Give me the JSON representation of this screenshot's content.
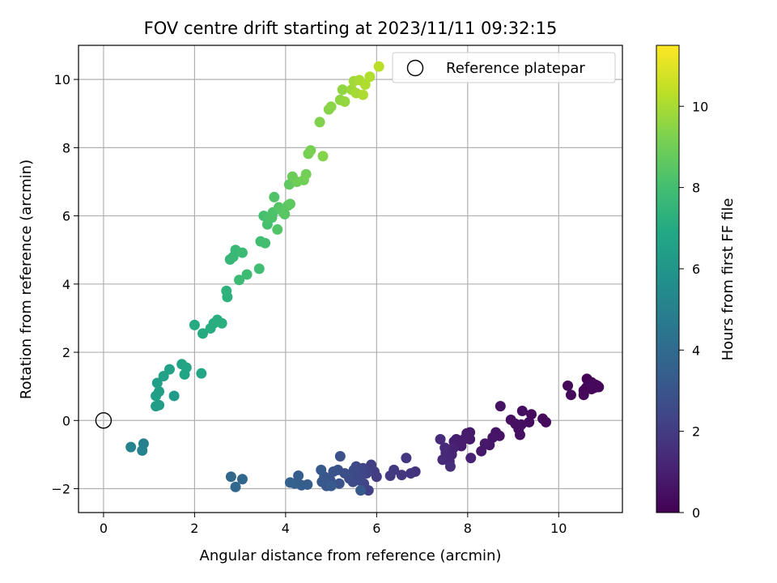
{
  "chart_data": {
    "type": "scatter",
    "title": "FOV centre drift starting at 2023/11/11 09:32:15",
    "xlabel": "Angular distance from reference (arcmin)",
    "ylabel": "Rotation from reference (arcmin)",
    "xlim": [
      -0.55,
      11.4
    ],
    "ylim": [
      -2.7,
      11.0
    ],
    "xticks": [
      0,
      2,
      4,
      6,
      8,
      10
    ],
    "yticks": [
      -2,
      0,
      2,
      4,
      6,
      8,
      10
    ],
    "xtick_labels": [
      "0",
      "2",
      "4",
      "6",
      "8",
      "10"
    ],
    "ytick_labels": [
      "−2",
      "0",
      "2",
      "4",
      "6",
      "8",
      "10"
    ],
    "grid": true,
    "legend": {
      "placement": "top-right",
      "entries": [
        {
          "label": "Reference platepar",
          "marker": "open-circle"
        }
      ]
    },
    "reference_point": {
      "x": 0,
      "y": 0
    },
    "colorbar": {
      "label": "Hours from first FF file",
      "colormap": "viridis",
      "range": [
        0,
        11.5
      ],
      "ticks": [
        0,
        2,
        4,
        6,
        8,
        10
      ],
      "tick_labels": [
        "0",
        "2",
        "4",
        "6",
        "8",
        "10"
      ]
    },
    "points": [
      [
        10.62,
        1.22,
        0.05
      ],
      [
        10.72,
        1.12,
        0.05
      ],
      [
        10.85,
        1.02,
        0.1
      ],
      [
        10.78,
        0.96,
        0.1
      ],
      [
        10.65,
        1.05,
        0.12
      ],
      [
        10.55,
        0.88,
        0.12
      ],
      [
        10.6,
        0.95,
        0.15
      ],
      [
        10.72,
        0.92,
        0.15
      ],
      [
        10.8,
        1.05,
        0.18
      ],
      [
        10.55,
        0.75,
        0.2
      ],
      [
        10.88,
        0.98,
        0.22
      ],
      [
        10.7,
        1.1,
        0.22
      ],
      [
        10.2,
        1.02,
        0.25
      ],
      [
        10.27,
        0.75,
        0.28
      ],
      [
        9.72,
        -0.05,
        0.3
      ],
      [
        9.65,
        0.05,
        0.32
      ],
      [
        9.4,
        0.18,
        0.35
      ],
      [
        9.35,
        -0.05,
        0.38
      ],
      [
        9.2,
        0.28,
        0.4
      ],
      [
        9.18,
        -0.12,
        0.42
      ],
      [
        9.12,
        -0.25,
        0.45
      ],
      [
        9.15,
        -0.42,
        0.48
      ],
      [
        9.05,
        -0.1,
        0.5
      ],
      [
        8.95,
        0.02,
        0.52
      ],
      [
        8.72,
        0.42,
        0.55
      ],
      [
        8.7,
        -0.45,
        0.6
      ],
      [
        8.62,
        -0.35,
        0.62
      ],
      [
        8.55,
        -0.5,
        0.65
      ],
      [
        8.48,
        -0.72,
        0.7
      ],
      [
        8.38,
        -0.68,
        0.72
      ],
      [
        8.3,
        -0.9,
        0.75
      ],
      [
        8.05,
        -0.55,
        0.8
      ],
      [
        8.05,
        -0.35,
        0.82
      ],
      [
        7.98,
        -0.38,
        0.85
      ],
      [
        7.92,
        -0.55,
        0.88
      ],
      [
        7.86,
        -0.75,
        0.9
      ],
      [
        7.82,
        -0.65,
        0.92
      ],
      [
        7.75,
        -0.55,
        0.95
      ],
      [
        7.7,
        -0.62,
        1.0
      ],
      [
        7.68,
        -0.82,
        1.05
      ],
      [
        8.07,
        -1.1,
        1.1
      ],
      [
        7.65,
        -1.0,
        1.15
      ],
      [
        7.6,
        -1.2,
        1.2
      ],
      [
        7.58,
        -1.05,
        1.25
      ],
      [
        7.52,
        -0.95,
        1.3
      ],
      [
        7.5,
        -0.8,
        1.35
      ],
      [
        7.45,
        -1.15,
        1.4
      ],
      [
        7.4,
        -0.55,
        1.45
      ],
      [
        7.62,
        -1.35,
        1.5
      ],
      [
        6.85,
        -1.5,
        1.7
      ],
      [
        6.75,
        -1.55,
        1.75
      ],
      [
        6.65,
        -1.1,
        1.8
      ],
      [
        6.55,
        -1.6,
        1.85
      ],
      [
        6.38,
        -1.45,
        1.9
      ],
      [
        6.3,
        -1.62,
        1.95
      ],
      [
        6.0,
        -1.65,
        2.0
      ],
      [
        5.95,
        -1.5,
        2.05
      ],
      [
        5.88,
        -1.3,
        2.1
      ],
      [
        5.85,
        -1.42,
        2.15
      ],
      [
        5.82,
        -2.05,
        2.2
      ],
      [
        5.78,
        -1.55,
        2.25
      ],
      [
        5.72,
        -1.85,
        2.3
      ],
      [
        5.7,
        -1.4,
        2.35
      ],
      [
        5.65,
        -1.62,
        2.4
      ],
      [
        5.6,
        -1.75,
        2.45
      ],
      [
        5.55,
        -1.35,
        2.5
      ],
      [
        5.55,
        -1.55,
        2.55
      ],
      [
        5.5,
        -1.45,
        2.6
      ],
      [
        5.48,
        -1.8,
        2.65
      ],
      [
        5.4,
        -1.7,
        2.7
      ],
      [
        5.3,
        -1.55,
        2.75
      ],
      [
        5.2,
        -1.05,
        2.8
      ],
      [
        5.15,
        -1.45,
        2.85
      ],
      [
        5.18,
        -1.85,
        2.9
      ],
      [
        5.05,
        -1.5,
        2.95
      ],
      [
        4.98,
        -1.75,
        3.0
      ],
      [
        4.9,
        -1.92,
        3.05
      ],
      [
        4.85,
        -1.65,
        3.1
      ],
      [
        4.8,
        -1.8,
        3.15
      ],
      [
        4.78,
        -1.45,
        3.2
      ],
      [
        5.65,
        -2.05,
        3.25
      ],
      [
        5.0,
        -1.92,
        3.3
      ],
      [
        4.48,
        -1.88,
        3.35
      ],
      [
        4.35,
        -1.9,
        3.4
      ],
      [
        4.28,
        -1.62,
        3.45
      ],
      [
        4.2,
        -1.85,
        3.5
      ],
      [
        4.1,
        -1.82,
        3.55
      ],
      [
        3.05,
        -1.72,
        3.8
      ],
      [
        2.9,
        -1.95,
        3.85
      ],
      [
        2.8,
        -1.65,
        3.9
      ],
      [
        0.88,
        -0.68,
        5.0
      ],
      [
        0.85,
        -0.88,
        5.05
      ],
      [
        0.6,
        -0.78,
        5.1
      ],
      [
        1.55,
        0.72,
        6.2
      ],
      [
        1.22,
        0.45,
        6.3
      ],
      [
        1.15,
        0.42,
        6.35
      ],
      [
        1.22,
        0.85,
        6.4
      ],
      [
        1.15,
        0.72,
        6.45
      ],
      [
        1.18,
        1.1,
        6.5
      ],
      [
        1.32,
        1.3,
        6.55
      ],
      [
        1.45,
        1.5,
        6.6
      ],
      [
        1.72,
        1.65,
        6.65
      ],
      [
        1.82,
        1.55,
        6.7
      ],
      [
        1.78,
        1.35,
        6.75
      ],
      [
        2.15,
        1.38,
        6.8
      ],
      [
        2.0,
        2.8,
        7.0
      ],
      [
        2.18,
        2.55,
        7.05
      ],
      [
        2.35,
        2.7,
        7.1
      ],
      [
        2.42,
        2.85,
        7.15
      ],
      [
        2.5,
        2.95,
        7.2
      ],
      [
        2.6,
        2.85,
        7.25
      ],
      [
        2.72,
        3.62,
        7.3
      ],
      [
        2.7,
        3.8,
        7.35
      ],
      [
        2.78,
        4.72,
        7.6
      ],
      [
        2.85,
        4.8,
        7.65
      ],
      [
        2.9,
        5.0,
        7.7
      ],
      [
        3.05,
        4.92,
        7.75
      ],
      [
        2.98,
        4.12,
        7.8
      ],
      [
        3.15,
        4.28,
        7.85
      ],
      [
        3.42,
        4.45,
        7.9
      ],
      [
        3.45,
        5.25,
        7.95
      ],
      [
        3.55,
        5.2,
        8.0
      ],
      [
        3.52,
        6.0,
        8.05
      ],
      [
        3.6,
        5.75,
        8.1
      ],
      [
        3.62,
        5.95,
        8.15
      ],
      [
        3.7,
        5.95,
        8.2
      ],
      [
        3.72,
        6.1,
        8.25
      ],
      [
        3.75,
        6.55,
        8.3
      ],
      [
        3.82,
        5.6,
        8.35
      ],
      [
        3.85,
        6.25,
        8.4
      ],
      [
        3.92,
        6.15,
        8.45
      ],
      [
        3.98,
        6.05,
        8.5
      ],
      [
        4.05,
        6.3,
        8.55
      ],
      [
        4.1,
        6.35,
        8.6
      ],
      [
        4.08,
        6.92,
        8.65
      ],
      [
        4.15,
        7.15,
        8.9
      ],
      [
        4.25,
        7.0,
        8.95
      ],
      [
        4.4,
        7.05,
        9.0
      ],
      [
        4.45,
        7.22,
        9.05
      ],
      [
        4.5,
        7.82,
        9.1
      ],
      [
        4.55,
        7.92,
        9.15
      ],
      [
        4.75,
        8.75,
        9.3
      ],
      [
        4.82,
        7.75,
        9.35
      ],
      [
        4.95,
        9.12,
        9.4
      ],
      [
        5.0,
        9.2,
        9.45
      ],
      [
        5.2,
        9.4,
        9.55
      ],
      [
        5.25,
        9.7,
        9.6
      ],
      [
        5.3,
        9.35,
        9.65
      ],
      [
        5.45,
        9.7,
        9.8
      ],
      [
        5.5,
        9.95,
        9.85
      ],
      [
        5.55,
        9.6,
        9.9
      ],
      [
        5.62,
        9.98,
        10.0
      ],
      [
        5.7,
        9.55,
        10.05
      ],
      [
        5.75,
        9.85,
        10.1
      ],
      [
        5.85,
        10.08,
        10.15
      ],
      [
        6.05,
        10.38,
        10.3
      ]
    ]
  }
}
